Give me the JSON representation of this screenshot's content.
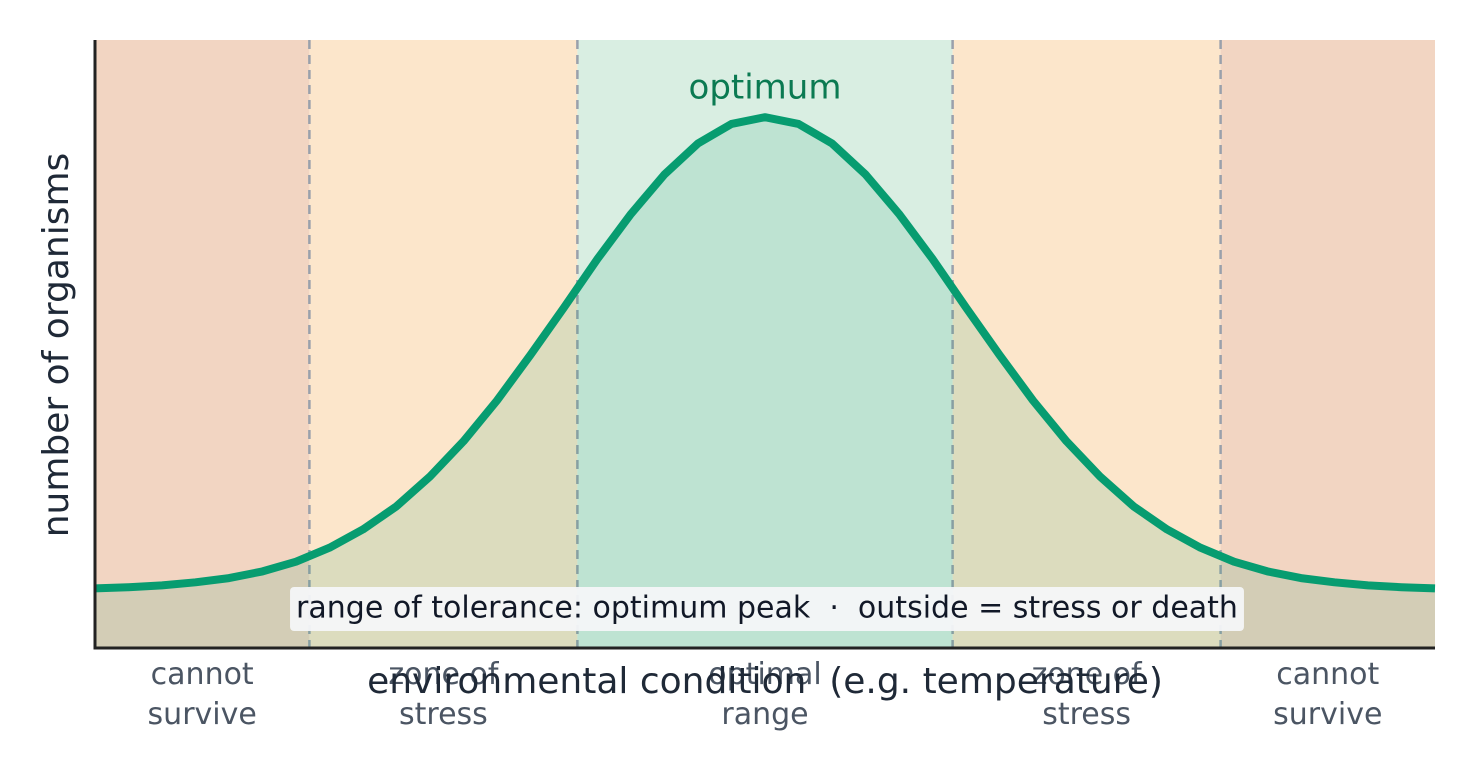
{
  "chart_data": {
    "type": "line",
    "xlabel": "environmental condition  (e.g. temperature)",
    "ylabel": "number of organisms",
    "xlim": [
      0,
      10
    ],
    "ylim": [
      0,
      1
    ],
    "x": [
      0,
      0.25,
      0.5,
      0.75,
      1,
      1.25,
      1.5,
      1.75,
      2,
      2.25,
      2.5,
      2.75,
      3,
      3.25,
      3.5,
      3.75,
      4,
      4.25,
      4.5,
      4.75,
      5,
      5.25,
      5.5,
      5.75,
      6,
      6.25,
      6.5,
      6.75,
      7,
      7.25,
      7.5,
      7.75,
      8,
      8.25,
      8.5,
      8.75,
      9,
      9.25,
      9.5,
      9.75,
      10
    ],
    "series": [
      {
        "color": "#079c70",
        "values": [
          0.098,
          0.1,
          0.103,
          0.108,
          0.115,
          0.126,
          0.142,
          0.165,
          0.195,
          0.233,
          0.282,
          0.34,
          0.407,
          0.482,
          0.56,
          0.64,
          0.714,
          0.779,
          0.83,
          0.862,
          0.873,
          0.862,
          0.83,
          0.779,
          0.714,
          0.64,
          0.56,
          0.482,
          0.407,
          0.34,
          0.282,
          0.233,
          0.195,
          0.165,
          0.142,
          0.126,
          0.115,
          0.108,
          0.103,
          0.1,
          0.098
        ]
      }
    ],
    "zones": [
      {
        "label": [
          "cannot",
          "survive"
        ],
        "from": 0,
        "to": 1.6,
        "color": "#f2d5c2"
      },
      {
        "label": [
          "zone of",
          "stress"
        ],
        "from": 1.6,
        "to": 3.6,
        "color": "#fce6cb"
      },
      {
        "label": [
          "optimal",
          "range"
        ],
        "from": 3.6,
        "to": 6.4,
        "color": "#d9eee2"
      },
      {
        "label": [
          "zone of",
          "stress"
        ],
        "from": 6.4,
        "to": 8.4,
        "color": "#fce6cb"
      },
      {
        "label": [
          "cannot",
          "survive"
        ],
        "from": 8.4,
        "to": 10,
        "color": "#f2d5c2"
      }
    ],
    "peak_label": "optimum",
    "note": "range of tolerance: optimum peak  ·  outside = stress or death"
  }
}
